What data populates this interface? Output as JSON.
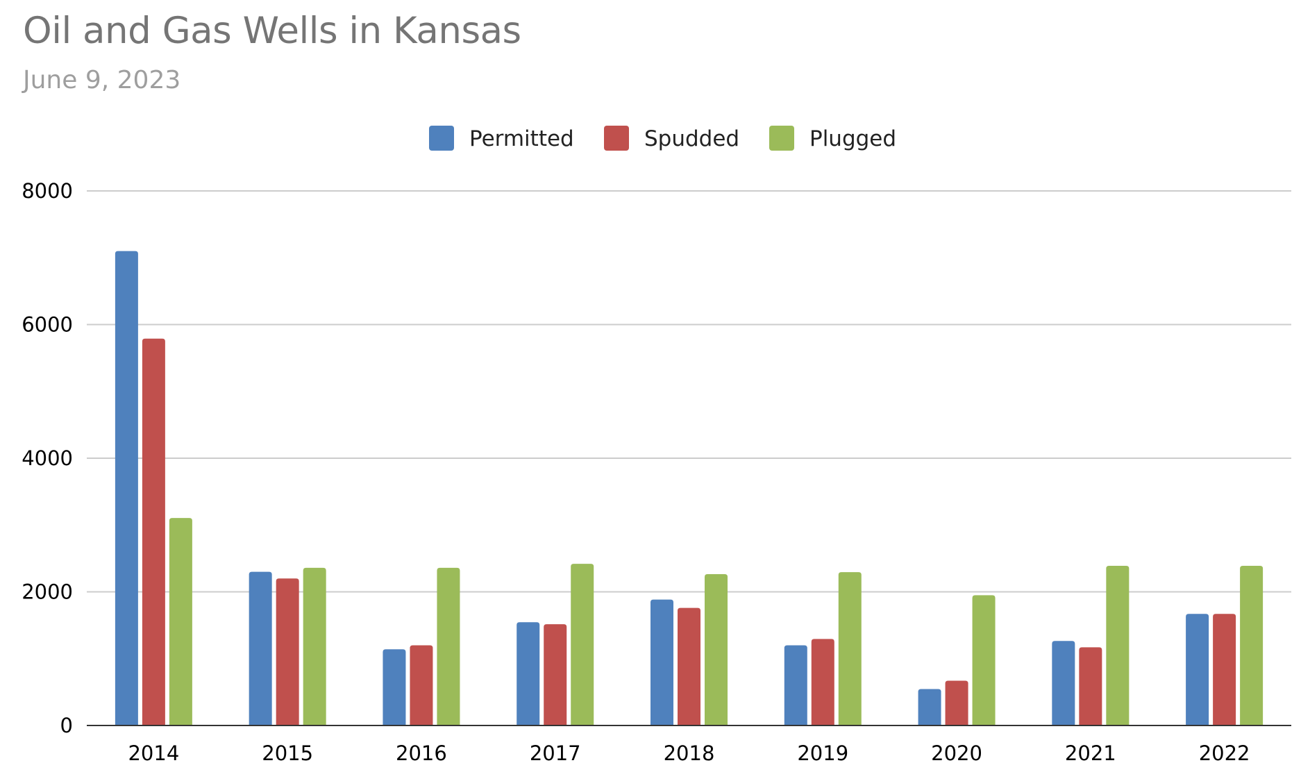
{
  "chart_data": {
    "type": "bar",
    "title": "Oil and Gas Wells in Kansas",
    "subtitle": "June 9, 2023",
    "categories": [
      "2014",
      "2015",
      "2016",
      "2017",
      "2018",
      "2019",
      "2020",
      "2021",
      "2022"
    ],
    "series": [
      {
        "name": "Permitted",
        "color": "#4f81bd",
        "values": [
          7100,
          2300,
          1140,
          1545,
          1885,
          1200,
          545,
          1265,
          1670
        ]
      },
      {
        "name": "Spudded",
        "color": "#c0504d",
        "values": [
          5790,
          2200,
          1200,
          1515,
          1760,
          1295,
          670,
          1170,
          1670
        ]
      },
      {
        "name": "Plugged",
        "color": "#9bbb59",
        "values": [
          3105,
          2360,
          2360,
          2420,
          2265,
          2295,
          1950,
          2390,
          2390
        ]
      }
    ],
    "yticks": [
      "0",
      "2000",
      "4000",
      "6000",
      "8000"
    ],
    "ylim": [
      0,
      8000
    ],
    "grid": true,
    "legend_position": "top-center",
    "xlabel": "",
    "ylabel": ""
  }
}
